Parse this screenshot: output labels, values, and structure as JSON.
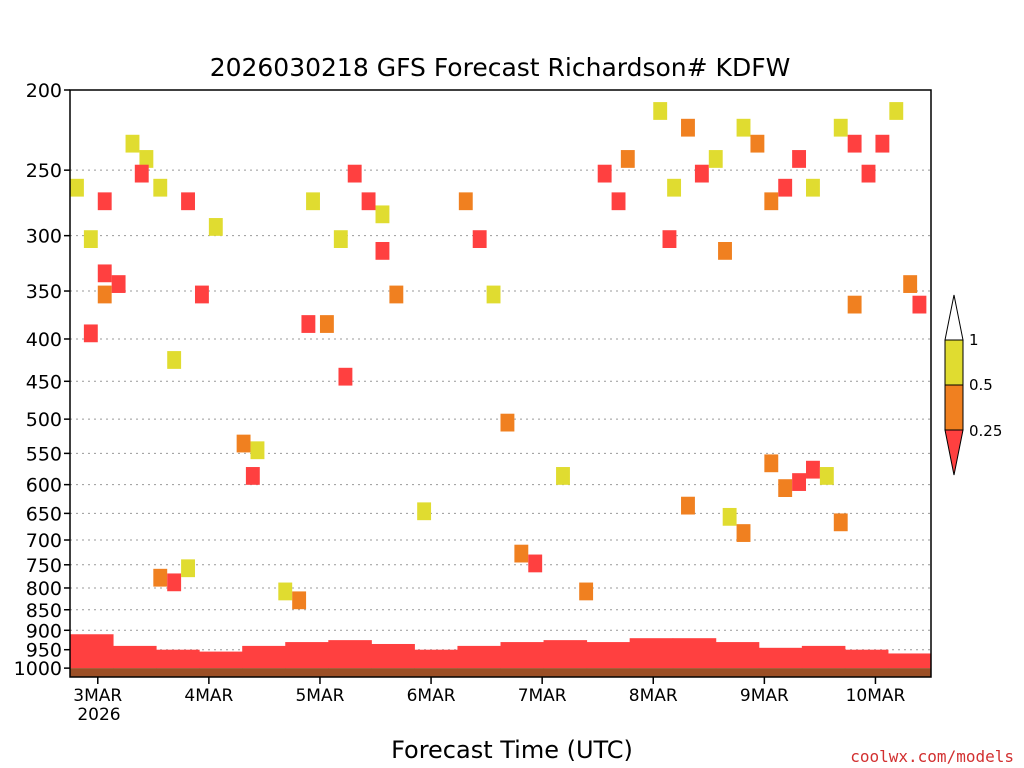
{
  "chart_data": {
    "type": "heatmap",
    "title": "2026030218 GFS Forecast Richardson# KDFW",
    "xlabel": "Forecast Time (UTC)",
    "ylabel": "",
    "credit": "coolwx.com/models",
    "x_ticks": [
      "3MAR",
      "4MAR",
      "5MAR",
      "6MAR",
      "7MAR",
      "8MAR",
      "9MAR",
      "10MAR"
    ],
    "x_tick_hours": [
      6,
      30,
      54,
      78,
      102,
      126,
      150,
      174
    ],
    "x_first_year": "2026",
    "x_range_hours": [
      0,
      186
    ],
    "y_ticks": [
      200,
      250,
      300,
      350,
      400,
      450,
      500,
      550,
      600,
      650,
      700,
      750,
      800,
      850,
      900,
      950,
      1000
    ],
    "y_range_hPa": [
      200,
      1025
    ],
    "y_scale": "log",
    "legend": {
      "placement": "right",
      "labels": [
        "1",
        "0.5",
        "0.25"
      ],
      "colors": {
        "lt_0.25": "#ff4040",
        "0.25_0.5": "#f08020",
        "0.5_1": "#e0dc30",
        "gt_1": "#ffffff"
      }
    },
    "surface_color": "#9b4f26",
    "surface_hPa": 1000,
    "boundary_layer_top_hPa": [
      910,
      940,
      950,
      955,
      940,
      930,
      925,
      935,
      950,
      940,
      930,
      925,
      930,
      920,
      920,
      930,
      945,
      940,
      950,
      960
    ],
    "cells": [
      {
        "t": 0,
        "p": 260,
        "v": 0.6
      },
      {
        "t": 3,
        "p": 300,
        "v": 0.7
      },
      {
        "t": 6,
        "p": 330,
        "v": 0.2
      },
      {
        "t": 6,
        "p": 350,
        "v": 0.3
      },
      {
        "t": 9,
        "p": 340,
        "v": 0.15
      },
      {
        "t": 3,
        "p": 390,
        "v": 0.2
      },
      {
        "t": 6,
        "p": 270,
        "v": 0.2
      },
      {
        "t": 12,
        "p": 230,
        "v": 0.6
      },
      {
        "t": 15,
        "p": 240,
        "v": 0.7
      },
      {
        "t": 14,
        "p": 250,
        "v": 0.2
      },
      {
        "t": 18,
        "p": 260,
        "v": 0.6
      },
      {
        "t": 24,
        "p": 270,
        "v": 0.2
      },
      {
        "t": 27,
        "p": 350,
        "v": 0.2
      },
      {
        "t": 30,
        "p": 290,
        "v": 0.6
      },
      {
        "t": 21,
        "p": 420,
        "v": 0.6
      },
      {
        "t": 18,
        "p": 770,
        "v": 0.3
      },
      {
        "t": 21,
        "p": 780,
        "v": 0.2
      },
      {
        "t": 24,
        "p": 750,
        "v": 0.6
      },
      {
        "t": 36,
        "p": 530,
        "v": 0.3
      },
      {
        "t": 38,
        "p": 580,
        "v": 0.2
      },
      {
        "t": 39,
        "p": 540,
        "v": 0.6
      },
      {
        "t": 45,
        "p": 800,
        "v": 0.6
      },
      {
        "t": 48,
        "p": 820,
        "v": 0.3
      },
      {
        "t": 51,
        "p": 270,
        "v": 0.6
      },
      {
        "t": 50,
        "p": 380,
        "v": 0.2
      },
      {
        "t": 54,
        "p": 380,
        "v": 0.3
      },
      {
        "t": 57,
        "p": 300,
        "v": 0.6
      },
      {
        "t": 60,
        "p": 250,
        "v": 0.2
      },
      {
        "t": 63,
        "p": 270,
        "v": 0.2
      },
      {
        "t": 66,
        "p": 280,
        "v": 0.6
      },
      {
        "t": 66,
        "p": 310,
        "v": 0.2
      },
      {
        "t": 69,
        "p": 350,
        "v": 0.3
      },
      {
        "t": 58,
        "p": 440,
        "v": 0.2
      },
      {
        "t": 75,
        "p": 640,
        "v": 0.6
      },
      {
        "t": 84,
        "p": 270,
        "v": 0.3
      },
      {
        "t": 87,
        "p": 300,
        "v": 0.2
      },
      {
        "t": 90,
        "p": 350,
        "v": 0.6
      },
      {
        "t": 93,
        "p": 500,
        "v": 0.3
      },
      {
        "t": 96,
        "p": 720,
        "v": 0.3
      },
      {
        "t": 99,
        "p": 740,
        "v": 0.2
      },
      {
        "t": 105,
        "p": 580,
        "v": 0.6
      },
      {
        "t": 110,
        "p": 800,
        "v": 0.3
      },
      {
        "t": 114,
        "p": 250,
        "v": 0.2
      },
      {
        "t": 117,
        "p": 270,
        "v": 0.2
      },
      {
        "t": 119,
        "p": 240,
        "v": 0.3
      },
      {
        "t": 126,
        "p": 210,
        "v": 0.6
      },
      {
        "t": 129,
        "p": 260,
        "v": 0.6
      },
      {
        "t": 128,
        "p": 300,
        "v": 0.2
      },
      {
        "t": 132,
        "p": 220,
        "v": 0.3
      },
      {
        "t": 135,
        "p": 250,
        "v": 0.2
      },
      {
        "t": 138,
        "p": 240,
        "v": 0.6
      },
      {
        "t": 140,
        "p": 310,
        "v": 0.3
      },
      {
        "t": 144,
        "p": 220,
        "v": 0.6
      },
      {
        "t": 147,
        "p": 230,
        "v": 0.3
      },
      {
        "t": 150,
        "p": 270,
        "v": 0.3
      },
      {
        "t": 153,
        "p": 260,
        "v": 0.2
      },
      {
        "t": 156,
        "p": 240,
        "v": 0.2
      },
      {
        "t": 159,
        "p": 260,
        "v": 0.6
      },
      {
        "t": 165,
        "p": 220,
        "v": 0.6
      },
      {
        "t": 168,
        "p": 230,
        "v": 0.2
      },
      {
        "t": 171,
        "p": 250,
        "v": 0.2
      },
      {
        "t": 174,
        "p": 230,
        "v": 0.2
      },
      {
        "t": 177,
        "p": 210,
        "v": 0.6
      },
      {
        "t": 180,
        "p": 340,
        "v": 0.3
      },
      {
        "t": 182,
        "p": 360,
        "v": 0.2
      },
      {
        "t": 168,
        "p": 360,
        "v": 0.3
      },
      {
        "t": 150,
        "p": 560,
        "v": 0.3
      },
      {
        "t": 153,
        "p": 600,
        "v": 0.3
      },
      {
        "t": 156,
        "p": 590,
        "v": 0.2
      },
      {
        "t": 159,
        "p": 570,
        "v": 0.2
      },
      {
        "t": 162,
        "p": 580,
        "v": 0.6
      },
      {
        "t": 141,
        "p": 650,
        "v": 0.6
      },
      {
        "t": 144,
        "p": 680,
        "v": 0.3
      },
      {
        "t": 132,
        "p": 630,
        "v": 0.3
      },
      {
        "t": 165,
        "p": 660,
        "v": 0.3
      }
    ]
  }
}
